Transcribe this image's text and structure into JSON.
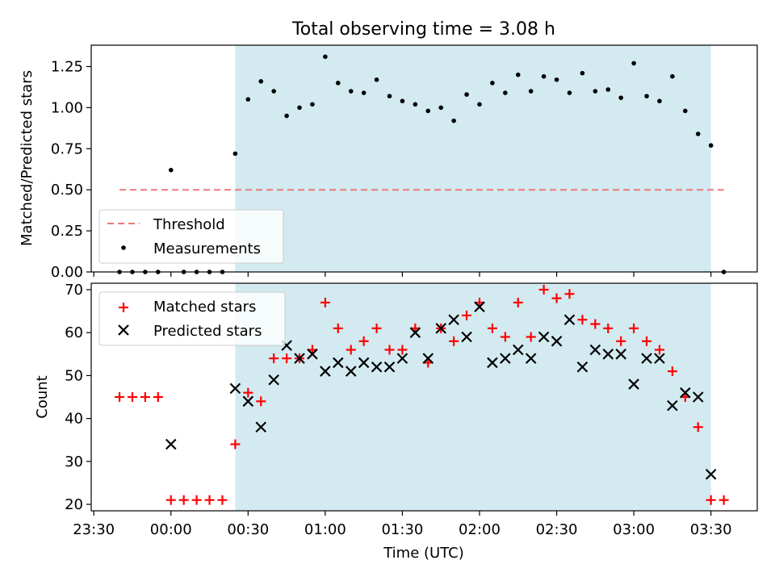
{
  "title": "Total observing time = 3.08 h",
  "chart_data": [
    {
      "type": "scatter",
      "ylabel": "Matched/Predicted stars",
      "ylim": [
        0,
        1.38
      ],
      "yticks": [
        0.0,
        0.25,
        0.5,
        0.75,
        1.0,
        1.25
      ],
      "ytick_labels": [
        "0.00",
        "0.25",
        "0.50",
        "0.75",
        "1.00",
        "1.25"
      ],
      "threshold": {
        "name": "Threshold",
        "y": 0.5,
        "x_start": "23:40",
        "x_end": "03:35",
        "color": "#f07878"
      },
      "series": [
        {
          "name": "Measurements",
          "color": "#000000",
          "points": [
            [
              "23:40",
              0.0
            ],
            [
              "23:45",
              0.0
            ],
            [
              "23:50",
              0.0
            ],
            [
              "23:55",
              0.0
            ],
            [
              "00:00",
              0.62
            ],
            [
              "00:05",
              0.0
            ],
            [
              "00:10",
              0.0
            ],
            [
              "00:15",
              0.0
            ],
            [
              "00:20",
              0.0
            ],
            [
              "00:25",
              0.72
            ],
            [
              "00:30",
              1.05
            ],
            [
              "00:35",
              1.16
            ],
            [
              "00:40",
              1.1
            ],
            [
              "00:45",
              0.95
            ],
            [
              "00:50",
              1.0
            ],
            [
              "00:55",
              1.02
            ],
            [
              "01:00",
              1.31
            ],
            [
              "01:05",
              1.15
            ],
            [
              "01:10",
              1.1
            ],
            [
              "01:15",
              1.09
            ],
            [
              "01:20",
              1.17
            ],
            [
              "01:25",
              1.07
            ],
            [
              "01:30",
              1.04
            ],
            [
              "01:35",
              1.02
            ],
            [
              "01:40",
              0.98
            ],
            [
              "01:45",
              1.0
            ],
            [
              "01:50",
              0.92
            ],
            [
              "01:55",
              1.08
            ],
            [
              "02:00",
              1.02
            ],
            [
              "02:05",
              1.15
            ],
            [
              "02:10",
              1.09
            ],
            [
              "02:15",
              1.2
            ],
            [
              "02:20",
              1.1
            ],
            [
              "02:25",
              1.19
            ],
            [
              "02:30",
              1.17
            ],
            [
              "02:35",
              1.09
            ],
            [
              "02:40",
              1.21
            ],
            [
              "02:45",
              1.1
            ],
            [
              "02:50",
              1.11
            ],
            [
              "02:55",
              1.06
            ],
            [
              "03:00",
              1.27
            ],
            [
              "03:05",
              1.07
            ],
            [
              "03:10",
              1.04
            ],
            [
              "03:15",
              1.19
            ],
            [
              "03:20",
              0.98
            ],
            [
              "03:25",
              0.84
            ],
            [
              "03:30",
              0.77
            ],
            [
              "03:35",
              0.0
            ]
          ]
        }
      ]
    },
    {
      "type": "scatter",
      "xlabel": "Time (UTC)",
      "ylabel": "Count",
      "ylim": [
        18.5,
        71.5
      ],
      "yticks": [
        20,
        30,
        40,
        50,
        60,
        70
      ],
      "ytick_labels": [
        "20",
        "30",
        "40",
        "50",
        "60",
        "70"
      ],
      "series": [
        {
          "name": "Matched stars",
          "marker": "+",
          "color": "#ff0000",
          "points": [
            [
              "23:40",
              45
            ],
            [
              "23:45",
              45
            ],
            [
              "23:50",
              45
            ],
            [
              "23:55",
              45
            ],
            [
              "00:00",
              21
            ],
            [
              "00:05",
              21
            ],
            [
              "00:10",
              21
            ],
            [
              "00:15",
              21
            ],
            [
              "00:20",
              21
            ],
            [
              "00:25",
              34
            ],
            [
              "00:30",
              46
            ],
            [
              "00:35",
              44
            ],
            [
              "00:40",
              54
            ],
            [
              "00:45",
              54
            ],
            [
              "00:50",
              54
            ],
            [
              "00:55",
              56
            ],
            [
              "01:00",
              67
            ],
            [
              "01:05",
              61
            ],
            [
              "01:10",
              56
            ],
            [
              "01:15",
              58
            ],
            [
              "01:20",
              61
            ],
            [
              "01:25",
              56
            ],
            [
              "01:30",
              56
            ],
            [
              "01:35",
              61
            ],
            [
              "01:40",
              53
            ],
            [
              "01:45",
              61
            ],
            [
              "01:50",
              58
            ],
            [
              "01:55",
              64
            ],
            [
              "02:00",
              67
            ],
            [
              "02:05",
              61
            ],
            [
              "02:10",
              59
            ],
            [
              "02:15",
              67
            ],
            [
              "02:20",
              59
            ],
            [
              "02:25",
              70
            ],
            [
              "02:30",
              68
            ],
            [
              "02:35",
              69
            ],
            [
              "02:40",
              63
            ],
            [
              "02:45",
              62
            ],
            [
              "02:50",
              61
            ],
            [
              "02:55",
              58
            ],
            [
              "03:00",
              61
            ],
            [
              "03:05",
              58
            ],
            [
              "03:10",
              56
            ],
            [
              "03:15",
              51
            ],
            [
              "03:20",
              45
            ],
            [
              "03:25",
              38
            ],
            [
              "03:30",
              21
            ],
            [
              "03:35",
              21
            ]
          ]
        },
        {
          "name": "Predicted stars",
          "marker": "x",
          "color": "#000000",
          "points": [
            [
              "00:00",
              34
            ],
            [
              "00:25",
              47
            ],
            [
              "00:30",
              44
            ],
            [
              "00:35",
              38
            ],
            [
              "00:40",
              49
            ],
            [
              "00:45",
              57
            ],
            [
              "00:50",
              54
            ],
            [
              "00:55",
              55
            ],
            [
              "01:00",
              51
            ],
            [
              "01:05",
              53
            ],
            [
              "01:10",
              51
            ],
            [
              "01:15",
              53
            ],
            [
              "01:20",
              52
            ],
            [
              "01:25",
              52
            ],
            [
              "01:30",
              54
            ],
            [
              "01:35",
              60
            ],
            [
              "01:40",
              54
            ],
            [
              "01:45",
              61
            ],
            [
              "01:50",
              63
            ],
            [
              "01:55",
              59
            ],
            [
              "02:00",
              66
            ],
            [
              "02:05",
              53
            ],
            [
              "02:10",
              54
            ],
            [
              "02:15",
              56
            ],
            [
              "02:20",
              54
            ],
            [
              "02:25",
              59
            ],
            [
              "02:30",
              58
            ],
            [
              "02:35",
              63
            ],
            [
              "02:40",
              52
            ],
            [
              "02:45",
              56
            ],
            [
              "02:50",
              55
            ],
            [
              "02:55",
              55
            ],
            [
              "03:00",
              48
            ],
            [
              "03:05",
              54
            ],
            [
              "03:10",
              54
            ],
            [
              "03:15",
              43
            ],
            [
              "03:20",
              46
            ],
            [
              "03:25",
              45
            ],
            [
              "03:30",
              27
            ]
          ]
        }
      ]
    }
  ],
  "x_axis": {
    "range": [
      "23:29",
      "03:48"
    ],
    "ticks": [
      "23:30",
      "00:00",
      "00:30",
      "01:00",
      "01:30",
      "02:00",
      "02:30",
      "03:00",
      "03:30"
    ]
  },
  "observing_window": {
    "start": "00:25",
    "end": "03:30",
    "color": "#d3eaf0"
  },
  "colors": {
    "threshold": "#f07878",
    "matched": "#ff0000",
    "predicted": "#000000",
    "measurement": "#000000",
    "window": "#d3eaf0"
  }
}
